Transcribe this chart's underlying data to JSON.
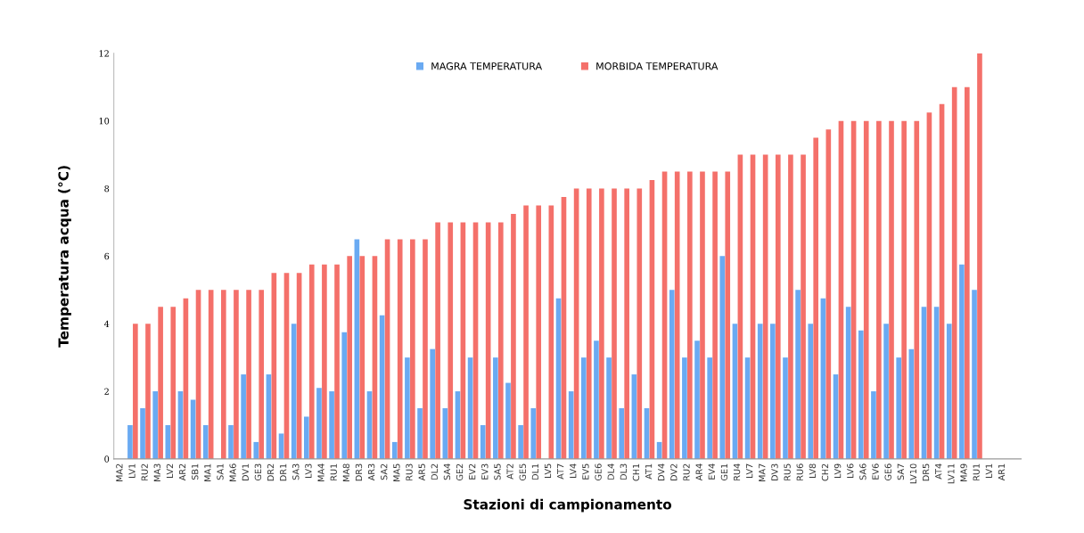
{
  "chart_data": {
    "type": "bar",
    "xlabel": "Stazioni di campionamento",
    "ylabel": "Temperatura acqua (°C)",
    "categories": [
      "MA2",
      "LV1",
      "RU2",
      "MA3",
      "LV2",
      "AR2",
      "SB1",
      "MA1",
      "SA1",
      "MA6",
      "DV1",
      "GE3",
      "DR2",
      "DR1",
      "SA3",
      "LV3",
      "MA4",
      "RU1",
      "MA8",
      "DR3",
      "AR3",
      "SA2",
      "MA5",
      "RU3",
      "AR5",
      "DL2",
      "SA4",
      "GE2",
      "EV2",
      "EV3",
      "SA5",
      "AT2",
      "GE5",
      "DL1",
      "LV5",
      "AT7",
      "LV4",
      "EV5",
      "GE6",
      "DL4",
      "DL3",
      "CH1",
      "AT1",
      "DV4",
      "DV2",
      "RU2",
      "AR4",
      "EV4",
      "GE1",
      "RU4",
      "LV7",
      "MA7",
      "DV3",
      "RU5",
      "RU6",
      "LV8",
      "CH2",
      "LV9",
      "LV6",
      "SA6",
      "EV6",
      "GE6",
      "SA7",
      "LV10",
      "DR5",
      "AT4",
      "LV11",
      "MA9",
      "RU1",
      "LV1",
      "AR1",
      null
    ],
    "series": [
      {
        "name": "MAGRA TEMPERATURA",
        "color": "#6aaaf2",
        "values": [
          null,
          1,
          1.5,
          2,
          1,
          2,
          1.75,
          1,
          0,
          1,
          2.5,
          0.5,
          2.5,
          0.75,
          4,
          1.25,
          2.1,
          2,
          3.75,
          6.5,
          2,
          4.25,
          0.5,
          3,
          1.5,
          3.25,
          1.5,
          2,
          3,
          1,
          3,
          2.25,
          1,
          1.5,
          0,
          4.75,
          2,
          3,
          3.5,
          3,
          1.5,
          2.5,
          1.5,
          0.5,
          5,
          3,
          3.5,
          3,
          6,
          4,
          3,
          4,
          4,
          3,
          5,
          4,
          4.75,
          2.5,
          4.5,
          3.8,
          2,
          4,
          3,
          3.25,
          4.5,
          4.5,
          4,
          5.75,
          5,
          null,
          null,
          null
        ]
      },
      {
        "name": "MORBIDA TEMPERATURA",
        "color": "#f4706a",
        "values": [
          null,
          4,
          4,
          4.5,
          4.5,
          4.75,
          5,
          5,
          5,
          5,
          5,
          5,
          5.5,
          5.5,
          5.5,
          5.75,
          5.75,
          5.75,
          6,
          6,
          6,
          6.5,
          6.5,
          6.5,
          6.5,
          7,
          7,
          7,
          7,
          7,
          7,
          7.25,
          7.5,
          7.5,
          7.5,
          7.75,
          8,
          8,
          8,
          8,
          8,
          8,
          8.25,
          8.5,
          8.5,
          8.5,
          8.5,
          8.5,
          8.5,
          9,
          9,
          9,
          9,
          9,
          9,
          9.5,
          9.75,
          10,
          10,
          10,
          10,
          10,
          10,
          10,
          10.25,
          10.5,
          11,
          11,
          12,
          null,
          null,
          null
        ]
      }
    ],
    "ylim": [
      0,
      12
    ],
    "yticks": [
      0,
      2,
      4,
      6,
      8,
      10,
      12
    ],
    "grid": false,
    "legend": "top"
  }
}
